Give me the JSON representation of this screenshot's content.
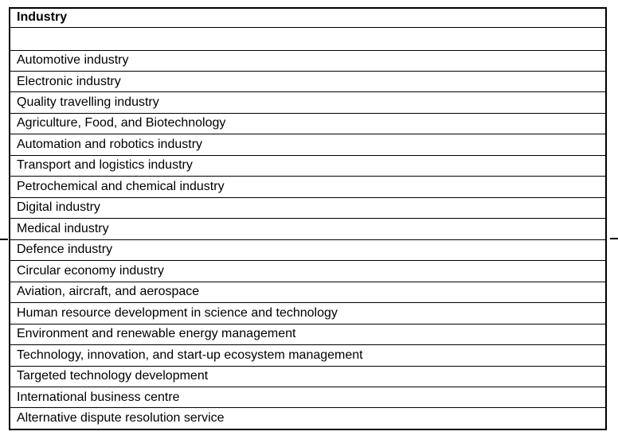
{
  "table": {
    "header": "Industry",
    "empty_row": "",
    "rows": [
      "Automotive industry",
      "Electronic industry",
      "Quality travelling industry",
      "Agriculture, Food, and Biotechnology",
      "Automation and robotics industry",
      "Transport and logistics industry",
      "Petrochemical and chemical industry",
      "Digital industry",
      "Medical industry",
      "Defence industry",
      "Circular economy industry",
      "Aviation, aircraft, and aerospace",
      "Human resource development in science and technology",
      "Environment and renewable energy management",
      "Technology, innovation, and start-up ecosystem management",
      "Targeted technology development",
      "International business centre",
      "Alternative dispute resolution service"
    ]
  },
  "colors": {
    "background": "#ffffff",
    "border": "#000000",
    "text": "#000000"
  }
}
